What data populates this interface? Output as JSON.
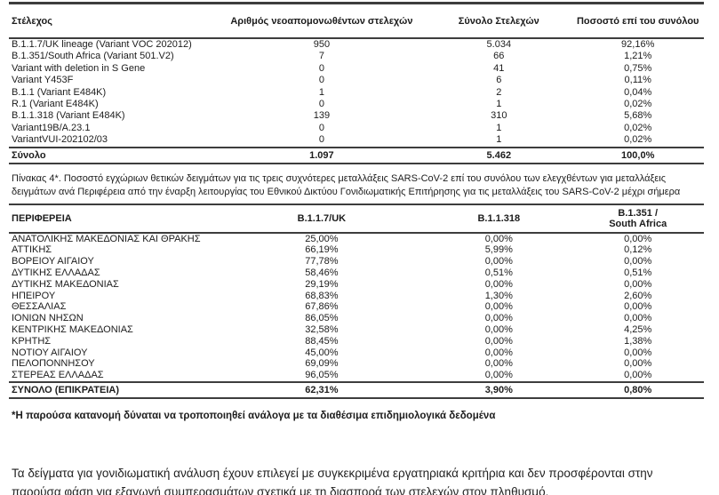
{
  "strain_table": {
    "headers": {
      "strain": "Στέλεχος",
      "new_isolates": "Αριθμός νεοαπομονωθέντων στελεχών",
      "total": "Σύνολο Στελεχών",
      "pct": "Ποσοστό επί του συνόλου"
    },
    "rows": [
      {
        "strain": "B.1.1.7/UK lineage (Variant VOC 202012)",
        "new_isolates": "950",
        "total": "5.034",
        "pct": "92,16%"
      },
      {
        "strain": "B.1.351/South Africa (Variant 501.V2)",
        "new_isolates": "7",
        "total": "66",
        "pct": "1,21%"
      },
      {
        "strain": "Variant with deletion in S Gene",
        "new_isolates": "0",
        "total": "41",
        "pct": "0,75%"
      },
      {
        "strain": "Variant Y453F",
        "new_isolates": "0",
        "total": "6",
        "pct": "0,11%"
      },
      {
        "strain": "B.1.1 (Variant E484K)",
        "new_isolates": "1",
        "total": "2",
        "pct": "0,04%"
      },
      {
        "strain": "R.1 (Variant E484K)",
        "new_isolates": "0",
        "total": "1",
        "pct": "0,02%"
      },
      {
        "strain": "B.1.1.318 (Variant E484K)",
        "new_isolates": "139",
        "total": "310",
        "pct": "5,68%"
      },
      {
        "strain": "Variant19B/A.23.1",
        "new_isolates": "0",
        "total": "1",
        "pct": "0,02%"
      },
      {
        "strain": "VariantVUI-202102/03",
        "new_isolates": "0",
        "total": "1",
        "pct": "0,02%"
      }
    ],
    "total_row": {
      "strain": "Σύνολο",
      "new_isolates": "1.097",
      "total": "5.462",
      "pct": "100,0%"
    }
  },
  "caption": "Πίνακας 4*. Ποσοστό εγχώριων θετικών δειγμάτων για τις τρεις συχνότερες μεταλλάξεις SARS-CoV-2 επί του συνόλου των ελεγχθέντων για μεταλλάξεις δειγμάτων ανά Περιφέρεια από την έναρξη λειτουργίας του Εθνικού Δικτύου Γονιδιωματικής Επιτήρησης για τις μεταλλάξεις του SARS-CoV-2 μέχρι σήμερα",
  "region_table": {
    "headers": {
      "region": "ΠΕΡΙΦΕΡΕΙΑ",
      "b117": "B.1.1.7/UK",
      "b11318": "B.1.1.318",
      "b1351": "B.1.351 /\nSouth Africa"
    },
    "rows": [
      {
        "region": "ΑΝΑΤΟΛΙΚΗΣ ΜΑΚΕΔΟΝΙΑΣ ΚΑΙ ΘΡΑΚΗΣ",
        "b117": "25,00%",
        "b11318": "0,00%",
        "b1351": "0,00%"
      },
      {
        "region": "ΑΤΤΙΚΗΣ",
        "b117": "66,19%",
        "b11318": "5,99%",
        "b1351": "0,12%"
      },
      {
        "region": "ΒΟΡΕΙΟΥ ΑΙΓΑΙΟΥ",
        "b117": "77,78%",
        "b11318": "0,00%",
        "b1351": "0,00%"
      },
      {
        "region": "ΔΥΤΙΚΗΣ ΕΛΛΑΔΑΣ",
        "b117": "58,46%",
        "b11318": "0,51%",
        "b1351": "0,51%"
      },
      {
        "region": "ΔΥΤΙΚΗΣ ΜΑΚΕΔΟΝΙΑΣ",
        "b117": "29,19%",
        "b11318": "0,00%",
        "b1351": "0,00%"
      },
      {
        "region": "ΗΠΕΙΡΟΥ",
        "b117": "68,83%",
        "b11318": "1,30%",
        "b1351": "2,60%"
      },
      {
        "region": "ΘΕΣΣΑΛΙΑΣ",
        "b117": "67,86%",
        "b11318": "0,00%",
        "b1351": "0,00%"
      },
      {
        "region": "ΙΟΝΙΩΝ ΝΗΣΩΝ",
        "b117": "86,05%",
        "b11318": "0,00%",
        "b1351": "0,00%"
      },
      {
        "region": "ΚΕΝΤΡΙΚΗΣ ΜΑΚΕΔΟΝΙΑΣ",
        "b117": "32,58%",
        "b11318": "0,00%",
        "b1351": "4,25%"
      },
      {
        "region": "ΚΡΗΤΗΣ",
        "b117": "88,45%",
        "b11318": "0,00%",
        "b1351": "1,38%"
      },
      {
        "region": "ΝΟΤΙΟΥ ΑΙΓΑΙΟΥ",
        "b117": "45,00%",
        "b11318": "0,00%",
        "b1351": "0,00%"
      },
      {
        "region": "ΠΕΛΟΠΟΝΝΗΣΟΥ",
        "b117": "69,09%",
        "b11318": "0,00%",
        "b1351": "0,00%"
      },
      {
        "region": "ΣΤΕΡΕΑΣ ΕΛΛΑΔΑΣ",
        "b117": "96,05%",
        "b11318": "0,00%",
        "b1351": "0,00%"
      }
    ],
    "total_row": {
      "region": "ΣΥΝΟΛΟ (ΕΠΙΚΡΑΤΕΙΑ)",
      "b117": "62,31%",
      "b11318": "3,90%",
      "b1351": "0,80%"
    }
  },
  "footnote": "*Η παρούσα κατανομή δύναται να τροποποιηθεί ανάλογα με τα διαθέσιμα επιδημιολογικά δεδομένα",
  "disclaimer": "Τα δείγματα για γονιδιωματική ανάλυση έχουν επιλεγεί με συγκεκριμένα εργατηριακά κριτήρια και δεν προσφέρονται στην παρούσα φάση για εξαγωγή συμπερασμάτων σχετικά με τη διασπορά των στελεχών στον πληθυσμό."
}
